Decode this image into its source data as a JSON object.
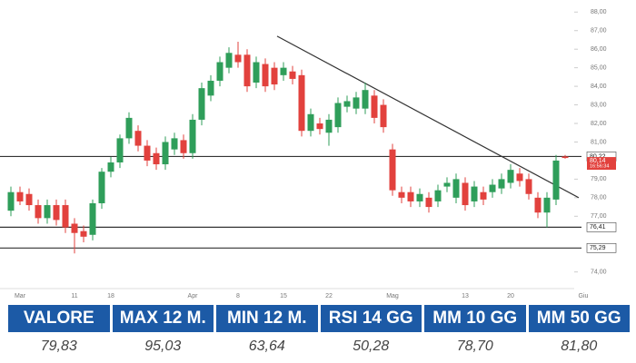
{
  "chart_data": {
    "type": "candlestick",
    "categories": [
      null,
      "Mar",
      null,
      null,
      null,
      null,
      null,
      "11",
      null,
      null,
      null,
      "18",
      null,
      null,
      null,
      null,
      null,
      null,
      null,
      null,
      "Apr",
      null,
      null,
      null,
      null,
      "8",
      null,
      null,
      null,
      null,
      "15",
      null,
      null,
      null,
      null,
      "22",
      null,
      null,
      null,
      null,
      null,
      null,
      "Mag",
      null,
      null,
      null,
      null,
      null,
      null,
      null,
      "13",
      null,
      null,
      null,
      null,
      "20",
      null,
      null,
      null,
      null,
      null,
      null,
      null,
      "Giu"
    ],
    "open": [
      77.3,
      78.3,
      78.2,
      77.6,
      76.9,
      77.6,
      77.6,
      76.6,
      76.2,
      76.0,
      77.7,
      79.4,
      79.9,
      81.2,
      81.6,
      80.8,
      80.4,
      79.8,
      80.6,
      81.1,
      80.4,
      82.2,
      83.5,
      84.3,
      85.0,
      85.7,
      85.7,
      84.2,
      85.2,
      85.0,
      84.6,
      84.8,
      84.6,
      81.6,
      82.0,
      81.5,
      81.8,
      82.9,
      82.8,
      82.8,
      83.5,
      83.0,
      80.6,
      78.3,
      78.3,
      77.8,
      78.0,
      77.8,
      78.6,
      78.0,
      78.8,
      77.8,
      78.3,
      78.3,
      78.5,
      78.8,
      79.3,
      79.0,
      78.0,
      77.2,
      77.9,
      80.22,
      null,
      null
    ],
    "high": [
      78.6,
      78.6,
      78.5,
      77.9,
      77.9,
      77.9,
      77.9,
      76.9,
      76.5,
      77.9,
      79.6,
      80.2,
      81.4,
      82.6,
      81.9,
      81.1,
      80.7,
      81.3,
      81.5,
      81.4,
      82.5,
      84.2,
      84.6,
      85.6,
      86.1,
      86.4,
      86.0,
      85.6,
      85.5,
      85.3,
      85.3,
      85.1,
      84.9,
      82.8,
      82.3,
      82.5,
      83.4,
      83.5,
      83.7,
      84.2,
      83.8,
      83.3,
      80.9,
      78.6,
      78.6,
      78.5,
      78.3,
      78.7,
      79.1,
      79.3,
      79.1,
      78.9,
      78.6,
      79.0,
      79.3,
      79.8,
      79.6,
      79.3,
      78.3,
      78.3,
      80.3,
      80.3,
      null,
      null
    ],
    "low": [
      77.0,
      77.6,
      77.3,
      76.6,
      76.6,
      76.5,
      76.1,
      75.0,
      75.6,
      75.7,
      77.4,
      79.1,
      79.6,
      80.9,
      80.5,
      79.7,
      79.5,
      79.5,
      80.3,
      80.1,
      80.1,
      81.9,
      83.2,
      84.0,
      84.7,
      85.0,
      83.7,
      83.9,
      83.7,
      83.8,
      84.3,
      84.1,
      81.3,
      81.3,
      81.4,
      80.8,
      81.5,
      82.6,
      82.5,
      82.5,
      82.0,
      81.5,
      78.1,
      77.7,
      77.5,
      77.5,
      77.2,
      77.5,
      78.3,
      77.7,
      77.3,
      77.5,
      77.6,
      78.0,
      78.2,
      78.5,
      78.6,
      77.9,
      76.9,
      76.4,
      77.6,
      80.1,
      null,
      null
    ],
    "close": [
      78.3,
      77.8,
      77.6,
      76.9,
      77.6,
      76.8,
      76.4,
      76.1,
      75.9,
      77.7,
      79.4,
      79.9,
      81.2,
      82.3,
      80.8,
      80.0,
      79.8,
      81.0,
      81.2,
      80.4,
      82.2,
      83.9,
      84.3,
      85.3,
      85.8,
      85.3,
      84.0,
      85.3,
      84.0,
      84.1,
      85.0,
      84.4,
      81.6,
      82.5,
      81.7,
      82.2,
      83.1,
      83.2,
      83.4,
      83.8,
      82.3,
      81.8,
      78.4,
      78.0,
      77.8,
      78.2,
      77.5,
      78.4,
      78.8,
      79.0,
      77.6,
      78.6,
      77.9,
      78.7,
      79.0,
      79.5,
      78.9,
      78.2,
      77.2,
      78.0,
      80.0,
      80.14,
      null,
      null
    ],
    "up_color": "#2f9e5a",
    "down_color": "#e2413d",
    "ylim": [
      73.3,
      88.6
    ],
    "yticks": [
      {
        "value": 88,
        "label": "88,00"
      },
      {
        "value": 87,
        "label": "87,00"
      },
      {
        "value": 86,
        "label": "86,00"
      },
      {
        "value": 85,
        "label": "85,00"
      },
      {
        "value": 84,
        "label": "84,00"
      },
      {
        "value": 83,
        "label": "83,00"
      },
      {
        "value": 82,
        "label": "82,00"
      },
      {
        "value": 81,
        "label": "81,00"
      },
      {
        "value": 79,
        "label": "79,00"
      },
      {
        "value": 78,
        "label": "78,00"
      },
      {
        "value": 77,
        "label": "77,00"
      },
      {
        "value": 74,
        "label": "74,00"
      }
    ],
    "levels": [
      {
        "value": 80.22,
        "label": "80,22"
      },
      {
        "value": 76.41,
        "label": "76,41"
      },
      {
        "value": 75.29,
        "label": "75,29"
      }
    ],
    "last_price": {
      "value": 80.14,
      "label": "80,14",
      "countdown": "16:56:34"
    },
    "trendline": {
      "x": [
        29.3,
        62.5
      ],
      "y": [
        86.7,
        78.0
      ]
    }
  },
  "table": {
    "headers": [
      "VALORE",
      "MAX 12 M.",
      "MIN 12 M.",
      "RSI 14 GG",
      "MM 10 GG",
      "MM 50 GG"
    ],
    "values": [
      "79,83",
      "95,03",
      "63,64",
      "50,28",
      "78,70",
      "81,80"
    ]
  }
}
